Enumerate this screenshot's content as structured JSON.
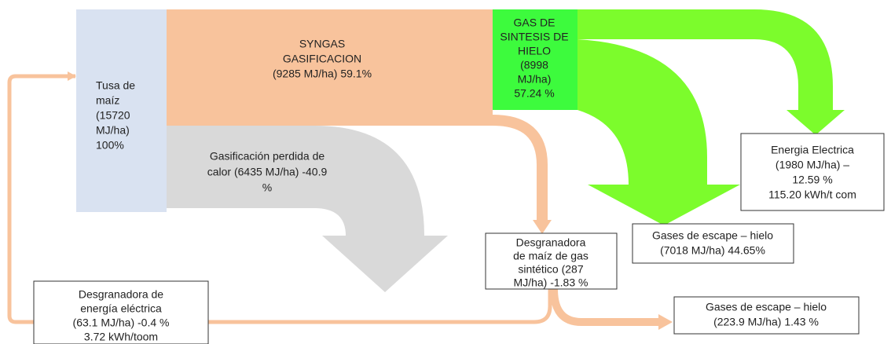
{
  "nodes": [
    {
      "id": "tusa",
      "lines": [
        "Tusa de",
        "maíz",
        "(15720",
        "MJ/ha)",
        "100%"
      ]
    },
    {
      "id": "syngas",
      "lines": [
        "SYNGAS",
        "GASIFICACION",
        "(9285 MJ/ha) 59.1%"
      ]
    },
    {
      "id": "gas-hielo",
      "lines": [
        "GAS DE",
        "SINTESIS DE",
        "HIELO",
        "(8998",
        "MJ/ha)",
        "57.24 %"
      ]
    },
    {
      "id": "perdida",
      "lines": [
        "Gasificación perdida de",
        "calor (6435 MJ/ha) -40.9",
        "%"
      ]
    },
    {
      "id": "energia",
      "lines": [
        "Energia Electrica",
        "(1980 MJ/ha) –",
        "12.59 %",
        "115.20 kWh/t com"
      ]
    },
    {
      "id": "escape1",
      "lines": [
        "Gases de escape – hielo",
        "(7018 MJ/ha) 44.65%"
      ]
    },
    {
      "id": "desg-gas",
      "lines": [
        "Desgranadora",
        "de maíz de gas",
        "sintético (287",
        "MJ/ha) -1.83 %"
      ]
    },
    {
      "id": "escape2",
      "lines": [
        "Gases de escape – hielo",
        "(223.9 MJ/ha) 1.43 %"
      ]
    },
    {
      "id": "desg-elec",
      "lines": [
        "Desgranadora de",
        "energía eléctrica",
        "(63.1 MJ/ha) -0.4 %",
        "3.72 kWh/toom"
      ]
    }
  ]
}
